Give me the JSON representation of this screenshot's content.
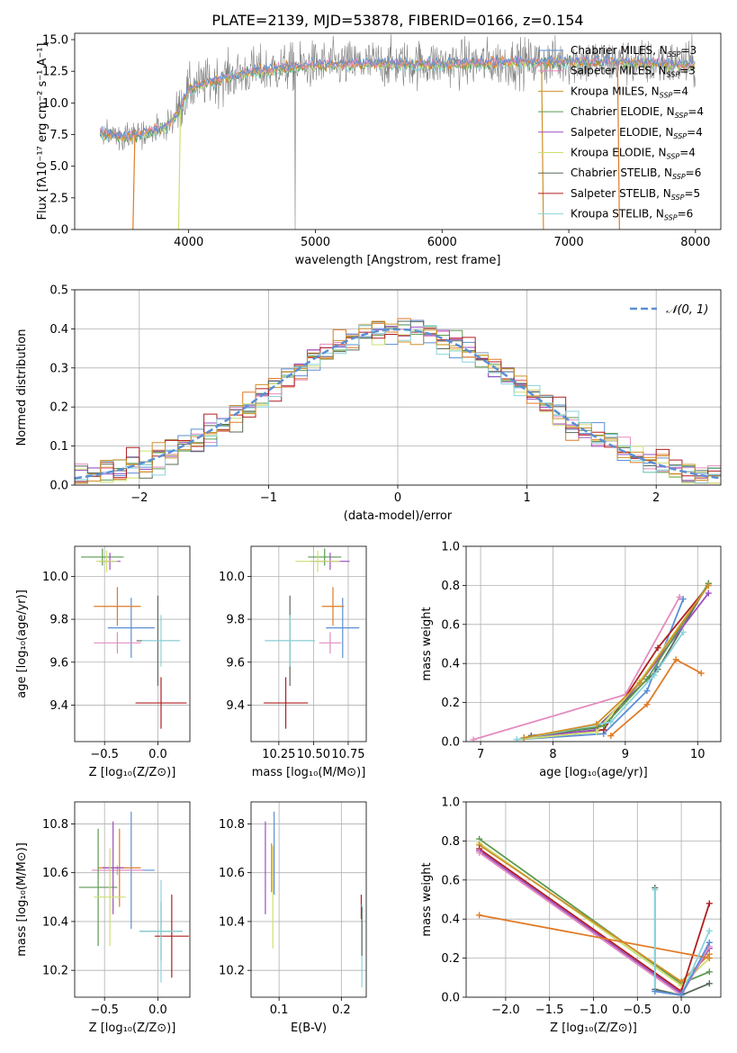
{
  "figure_title": "PLATE=2139, MJD=53878, FIBERID=0166, z=0.154",
  "series_meta": [
    {
      "color": "#5b8fd3"
    },
    {
      "color": "#e07b26"
    },
    {
      "color": "#d0902a"
    },
    {
      "color": "#5a9a50"
    },
    {
      "color": "#9a4fc0"
    },
    {
      "color": "#cde070"
    },
    {
      "color": "#5a6a5a"
    },
    {
      "color": "#b01e22"
    },
    {
      "color": "#88d4dc"
    },
    {
      "color": "#e58bc0"
    }
  ],
  "chart_data": [
    {
      "id": "spectrum",
      "type": "line",
      "xlabel": "wavelength [Angstrom, rest frame]",
      "ylabel": "Flux [fλ10⁻¹⁷ erg cm⁻² s⁻¹ A⁻¹]",
      "xlim": [
        3100,
        8200
      ],
      "ylim": [
        0,
        15.5
      ],
      "xticks": [
        4000,
        5000,
        6000,
        7000,
        8000
      ],
      "yticks": [
        0.0,
        2.5,
        5.0,
        7.5,
        10.0,
        12.5,
        15.0
      ],
      "legend": "top-right",
      "legend_entries": [
        {
          "name": "Chabrier MILES, N",
          "sub": "SSP",
          "suffix": "=3",
          "color": "#5b8fd3"
        },
        {
          "name": "Salpeter MILES, N",
          "sub": "SSP",
          "suffix": "=3",
          "color": "#e58bc0"
        },
        {
          "name": "Kroupa MILES, N",
          "sub": "SSP",
          "suffix": "=4",
          "color": "#d0902a"
        },
        {
          "name": "Chabrier ELODIE, N",
          "sub": "SSP",
          "suffix": "=4",
          "color": "#5a9a50"
        },
        {
          "name": "Salpeter ELODIE, N",
          "sub": "SSP",
          "suffix": "=4",
          "color": "#9a4fc0"
        },
        {
          "name": "Kroupa ELODIE, N",
          "sub": "SSP",
          "suffix": "=4",
          "color": "#cde070"
        },
        {
          "name": "Chabrier STELIB, N",
          "sub": "SSP",
          "suffix": "=6",
          "color": "#5a6a5a"
        },
        {
          "name": "Salpeter STELIB, N",
          "sub": "SSP",
          "suffix": "=5",
          "color": "#b01e22"
        },
        {
          "name": "Kroupa STELIB, N",
          "sub": "SSP",
          "suffix": "=6",
          "color": "#88d4dc"
        }
      ],
      "data_color": "#808080",
      "data_range": [
        3300,
        8000
      ],
      "continuum": [
        [
          3300,
          7.6
        ],
        [
          3500,
          7.3
        ],
        [
          3600,
          7.5
        ],
        [
          3700,
          7.8
        ],
        [
          3800,
          8.0
        ],
        [
          3900,
          9.0
        ],
        [
          4000,
          11.0
        ],
        [
          4100,
          11.5
        ],
        [
          4300,
          12.0
        ],
        [
          4500,
          12.5
        ],
        [
          5000,
          13.0
        ],
        [
          5500,
          13.1
        ],
        [
          6000,
          13.1
        ],
        [
          6500,
          13.2
        ],
        [
          7000,
          13.3
        ],
        [
          7500,
          13.2
        ],
        [
          8000,
          13.0
        ]
      ],
      "drops": [
        {
          "color": "#e07b26",
          "x": 3560,
          "dir": "left"
        },
        {
          "color": "#cde070",
          "x": 3920,
          "dir": "left"
        },
        {
          "color": "#d0902a",
          "x": 6800,
          "dir": "right"
        },
        {
          "color": "#e07b26",
          "x": 7400,
          "dir": "right"
        }
      ],
      "data_spike": 4840
    },
    {
      "id": "residuals",
      "type": "histogram",
      "xlabel": "(data-model)/error",
      "ylabel": "Normed distribution",
      "xlim": [
        -2.5,
        2.5
      ],
      "ylim": [
        0,
        0.5
      ],
      "xticks": [
        -2,
        -1,
        0,
        1,
        2
      ],
      "yticks": [
        0.0,
        0.1,
        0.2,
        0.3,
        0.4,
        0.5
      ],
      "bin_width": 0.1,
      "reference_label": "𝒩(0, 1)",
      "reference_color": "#5b8fd3",
      "legend": "top-right"
    },
    {
      "id": "age_vs_Z",
      "type": "errorbar",
      "xlabel": "Z [log₁₀(Z/Z⊙)]",
      "ylabel": "age  [log₁₀(age/yr)]",
      "xlim": [
        -0.78,
        0.3
      ],
      "ylim": [
        9.23,
        10.14
      ],
      "xticks": [
        -0.5,
        0.0
      ],
      "yticks": [
        9.4,
        9.6,
        9.8,
        10.0
      ],
      "points": [
        {
          "c": 7,
          "x": 0.03,
          "y": 9.41,
          "dx": 0.24,
          "dy": 0.12
        },
        {
          "c": 6,
          "x": 0.0,
          "y": 9.7,
          "dx": 0.2,
          "dy": 0.21
        },
        {
          "c": 8,
          "x": 0.03,
          "y": 9.7,
          "dx": 0.18,
          "dy": 0.12
        },
        {
          "c": 0,
          "x": -0.25,
          "y": 9.76,
          "dx": 0.22,
          "dy": 0.14
        },
        {
          "c": 9,
          "x": -0.38,
          "y": 9.69,
          "dx": 0.22,
          "dy": 0.05
        },
        {
          "c": 1,
          "x": -0.38,
          "y": 9.86,
          "dx": 0.22,
          "dy": 0.09
        },
        {
          "c": 3,
          "x": -0.52,
          "y": 10.09,
          "dx": 0.2,
          "dy": 0.04
        },
        {
          "c": 4,
          "x": -0.45,
          "y": 10.07,
          "dx": 0.1,
          "dy": 0.04
        },
        {
          "c": 5,
          "x": -0.48,
          "y": 10.07,
          "dx": 0.1,
          "dy": 0.05
        }
      ]
    },
    {
      "id": "age_vs_mass",
      "type": "errorbar",
      "xlabel": "mass [log₁₀(M/M⊙)]",
      "ylabel": "",
      "xlim": [
        10.05,
        10.88
      ],
      "ylim": [
        9.23,
        10.14
      ],
      "xticks": [
        10.25,
        10.5,
        10.75
      ],
      "yticks": [
        9.4,
        9.6,
        9.8,
        10.0
      ],
      "points": [
        {
          "c": 7,
          "x": 10.3,
          "y": 9.41,
          "dx": 0.16,
          "dy": 0.12
        },
        {
          "c": 6,
          "x": 10.33,
          "y": 9.7,
          "dx": 0.18,
          "dy": 0.21
        },
        {
          "c": 8,
          "x": 10.33,
          "y": 9.7,
          "dx": 0.18,
          "dy": 0.12
        },
        {
          "c": 0,
          "x": 10.71,
          "y": 9.76,
          "dx": 0.12,
          "dy": 0.14
        },
        {
          "c": 9,
          "x": 10.62,
          "y": 9.69,
          "dx": 0.08,
          "dy": 0.05
        },
        {
          "c": 1,
          "x": 10.64,
          "y": 9.86,
          "dx": 0.08,
          "dy": 0.09
        },
        {
          "c": 3,
          "x": 10.58,
          "y": 10.09,
          "dx": 0.12,
          "dy": 0.04
        },
        {
          "c": 4,
          "x": 10.62,
          "y": 10.07,
          "dx": 0.14,
          "dy": 0.04
        },
        {
          "c": 5,
          "x": 10.53,
          "y": 10.07,
          "dx": 0.16,
          "dy": 0.05
        }
      ]
    },
    {
      "id": "massweight_vs_age",
      "type": "line",
      "xlabel": "age  [log₁₀(age/yr)]",
      "ylabel": "mass weight",
      "xlim": [
        6.8,
        10.32
      ],
      "ylim": [
        0,
        1.0
      ],
      "xticks": [
        7,
        8,
        9,
        10
      ],
      "yticks": [
        0.0,
        0.2,
        0.4,
        0.6,
        0.8,
        1.0
      ],
      "series": [
        {
          "c": 9,
          "pts": [
            [
              6.9,
              0.01
            ],
            [
              9.0,
              0.24
            ],
            [
              9.75,
              0.74
            ]
          ]
        },
        {
          "c": 1,
          "pts": [
            [
              8.8,
              0.03
            ],
            [
              9.3,
              0.19
            ],
            [
              9.7,
              0.42
            ],
            [
              10.05,
              0.35
            ]
          ]
        },
        {
          "c": 0,
          "pts": [
            [
              7.5,
              0.01
            ],
            [
              8.7,
              0.04
            ],
            [
              9.3,
              0.26
            ],
            [
              9.8,
              0.73
            ]
          ]
        },
        {
          "c": 7,
          "pts": [
            [
              7.7,
              0.03
            ],
            [
              8.7,
              0.06
            ],
            [
              9.45,
              0.48
            ],
            [
              10.15,
              0.8
            ]
          ]
        },
        {
          "c": 6,
          "pts": [
            [
              7.7,
              0.03
            ],
            [
              8.6,
              0.07
            ],
            [
              9.45,
              0.37
            ],
            [
              10.15,
              0.81
            ]
          ]
        },
        {
          "c": 4,
          "pts": [
            [
              7.6,
              0.02
            ],
            [
              8.6,
              0.06
            ],
            [
              9.2,
              0.3
            ],
            [
              10.15,
              0.76
            ]
          ]
        },
        {
          "c": 5,
          "pts": [
            [
              7.5,
              0.01
            ],
            [
              8.6,
              0.05
            ],
            [
              9.2,
              0.31
            ],
            [
              10.15,
              0.8
            ]
          ]
        },
        {
          "c": 3,
          "pts": [
            [
              7.6,
              0.02
            ],
            [
              8.7,
              0.08
            ],
            [
              9.3,
              0.32
            ],
            [
              10.15,
              0.81
            ]
          ]
        },
        {
          "c": 8,
          "pts": [
            [
              7.5,
              0.01
            ],
            [
              8.8,
              0.1
            ],
            [
              9.4,
              0.34
            ],
            [
              9.8,
              0.56
            ]
          ]
        },
        {
          "c": 2,
          "pts": [
            [
              7.6,
              0.02
            ],
            [
              8.6,
              0.09
            ],
            [
              9.2,
              0.3
            ],
            [
              10.15,
              0.8
            ]
          ]
        }
      ]
    },
    {
      "id": "mass_vs_Z",
      "type": "errorbar",
      "xlabel": "Z [log₁₀(Z/Z⊙)]",
      "ylabel": "mass [log₁₀(M/M⊙)]",
      "xlim": [
        -0.78,
        0.3
      ],
      "ylim": [
        10.09,
        10.89
      ],
      "xticks": [
        -0.5,
        0.0
      ],
      "yticks": [
        10.2,
        10.4,
        10.6,
        10.8
      ],
      "points": [
        {
          "c": 7,
          "x": 0.13,
          "y": 10.34,
          "dx": 0.16,
          "dy": 0.17
        },
        {
          "c": 6,
          "x": 0.03,
          "y": 10.36,
          "dx": 0.2,
          "dy": 0.12
        },
        {
          "c": 8,
          "x": 0.03,
          "y": 10.36,
          "dx": 0.2,
          "dy": 0.21
        },
        {
          "c": 0,
          "x": -0.25,
          "y": 10.61,
          "dx": 0.22,
          "dy": 0.24
        },
        {
          "c": 9,
          "x": -0.38,
          "y": 10.61,
          "dx": 0.24,
          "dy": 0.02
        },
        {
          "c": 1,
          "x": -0.36,
          "y": 10.62,
          "dx": 0.2,
          "dy": 0.16
        },
        {
          "c": 3,
          "x": -0.56,
          "y": 10.54,
          "dx": 0.18,
          "dy": 0.24
        },
        {
          "c": 4,
          "x": -0.42,
          "y": 10.62,
          "dx": 0.1,
          "dy": 0.19
        },
        {
          "c": 5,
          "x": -0.45,
          "y": 10.5,
          "dx": 0.15,
          "dy": 0.2
        }
      ]
    },
    {
      "id": "mass_vs_EBV",
      "type": "errorbar",
      "xlabel": "E(B-V)",
      "ylabel": "",
      "xlim": [
        0.055,
        0.24
      ],
      "ylim": [
        10.09,
        10.89
      ],
      "xticks": [
        0.1,
        0.2
      ],
      "yticks": [
        10.2,
        10.4,
        10.6,
        10.8
      ],
      "points": [
        {
          "c": 4,
          "x": 0.078,
          "y": 10.62,
          "dx": 0.0,
          "dy": 0.19
        },
        {
          "c": 1,
          "x": 0.088,
          "y": 10.62,
          "dx": 0.0,
          "dy": 0.1
        },
        {
          "c": 5,
          "x": 0.09,
          "y": 10.5,
          "dx": 0.0,
          "dy": 0.21
        },
        {
          "c": 0,
          "x": 0.092,
          "y": 10.68,
          "dx": 0.0,
          "dy": 0.17
        },
        {
          "c": 7,
          "x": 0.232,
          "y": 10.46,
          "dx": 0.0,
          "dy": 0.05
        },
        {
          "c": 8,
          "x": 0.233,
          "y": 10.3,
          "dx": 0.0,
          "dy": 0.17
        },
        {
          "c": 6,
          "x": 0.233,
          "y": 10.36,
          "dx": 0.0,
          "dy": 0.1
        }
      ]
    },
    {
      "id": "massweight_vs_Z",
      "type": "line",
      "xlabel": "Z [log₁₀(Z/Z⊙)]",
      "ylabel": "mass weight",
      "xlim": [
        -2.45,
        0.45
      ],
      "ylim": [
        0,
        1.0
      ],
      "xticks": [
        -2.0,
        -1.5,
        -1.0,
        -0.5,
        0.0
      ],
      "yticks": [
        0.0,
        0.2,
        0.4,
        0.6,
        0.8,
        1.0
      ],
      "series": [
        {
          "c": 3,
          "pts": [
            [
              -2.3,
              0.81
            ],
            [
              0.0,
              0.07
            ],
            [
              0.32,
              0.13
            ]
          ]
        },
        {
          "c": 5,
          "pts": [
            [
              -2.3,
              0.79
            ],
            [
              0.0,
              0.06
            ],
            [
              0.32,
              0.2
            ]
          ]
        },
        {
          "c": 2,
          "pts": [
            [
              -2.3,
              0.78
            ],
            [
              0.0,
              0.08
            ],
            [
              0.32,
              0.22
            ]
          ]
        },
        {
          "c": 7,
          "pts": [
            [
              -2.3,
              0.76
            ],
            [
              0.0,
              0.03
            ],
            [
              0.32,
              0.48
            ]
          ]
        },
        {
          "c": 4,
          "pts": [
            [
              -2.3,
              0.75
            ],
            [
              0.0,
              0.02
            ],
            [
              0.32,
              0.25
            ]
          ]
        },
        {
          "c": 9,
          "pts": [
            [
              -2.3,
              0.74
            ],
            [
              0.0,
              0.01
            ],
            [
              0.32,
              0.26
            ]
          ]
        },
        {
          "c": 1,
          "pts": [
            [
              -2.3,
              0.42
            ],
            [
              0.32,
              0.2
            ]
          ]
        },
        {
          "c": 6,
          "pts": [
            [
              -0.3,
              0.56
            ],
            [
              -0.3,
              0.04
            ],
            [
              0.0,
              0.01
            ],
            [
              0.32,
              0.07
            ]
          ]
        },
        {
          "c": 8,
          "pts": [
            [
              -0.3,
              0.55
            ],
            [
              -0.3,
              0.03
            ],
            [
              0.0,
              0.01
            ],
            [
              0.32,
              0.34
            ]
          ]
        },
        {
          "c": 0,
          "pts": [
            [
              -0.3,
              0.03
            ],
            [
              0.0,
              0.01
            ],
            [
              0.32,
              0.28
            ]
          ]
        }
      ]
    }
  ]
}
